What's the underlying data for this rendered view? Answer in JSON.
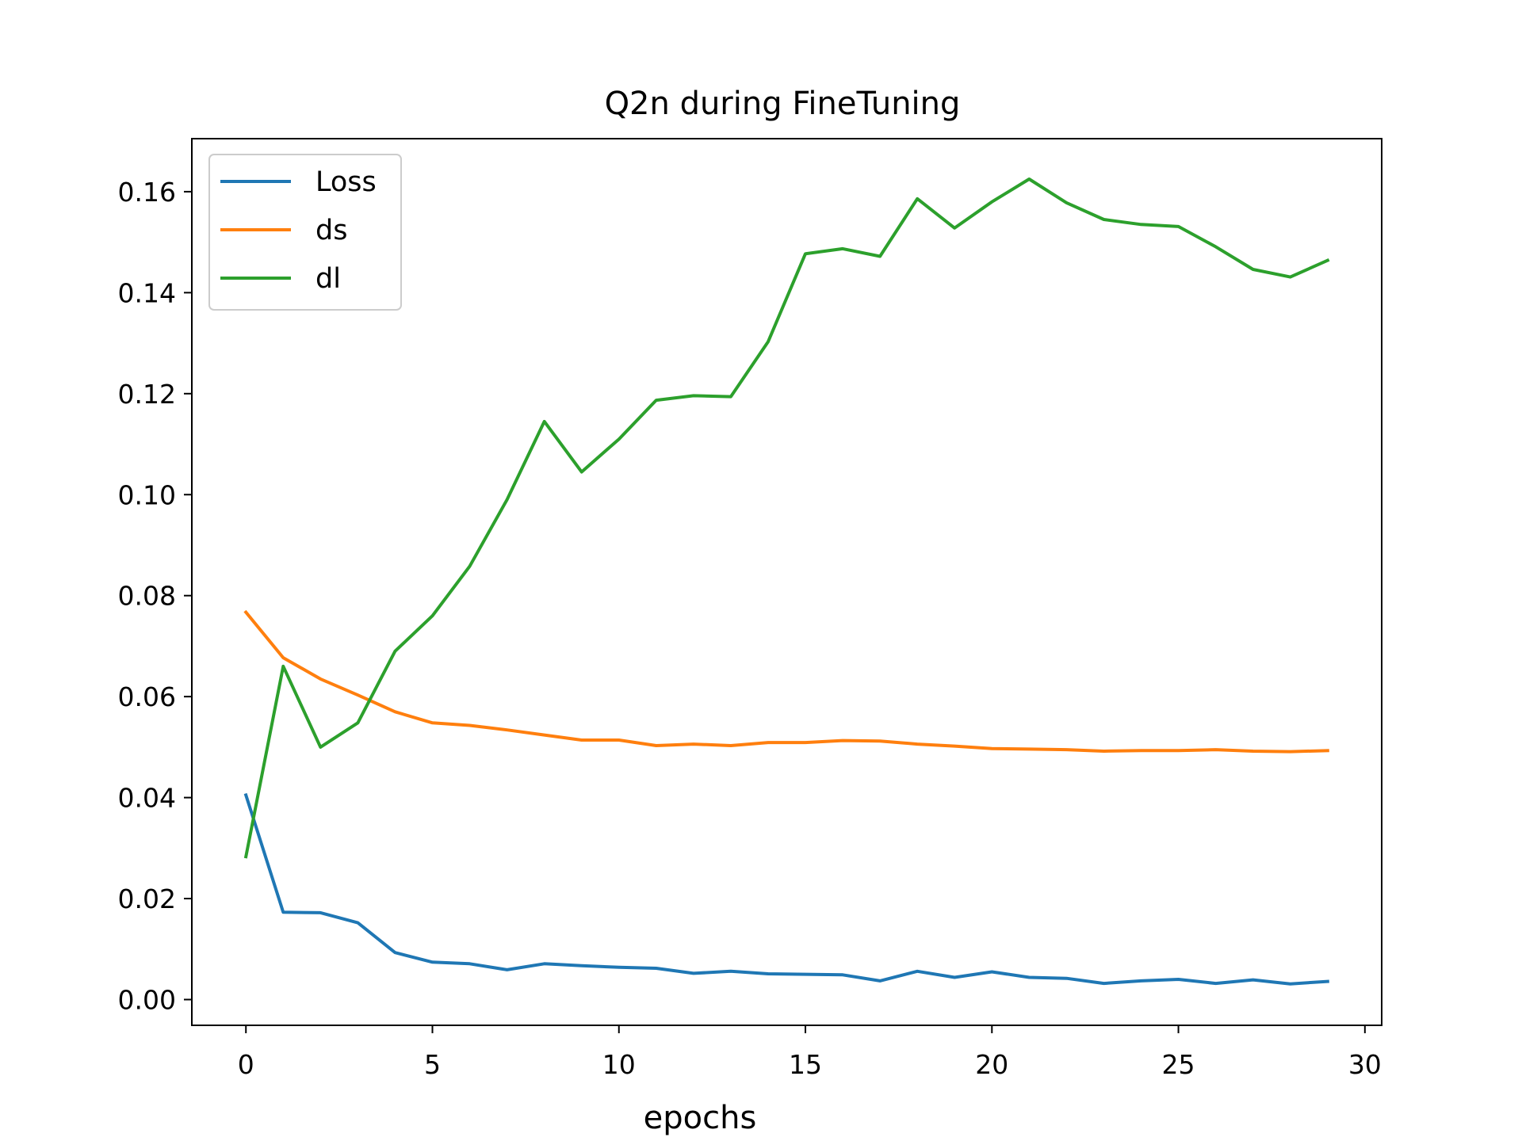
{
  "chart_data": {
    "type": "line",
    "title": "Q2n during FineTuning",
    "xlabel": "epochs",
    "ylabel": "",
    "xlim": [
      -1.45,
      30.45
    ],
    "ylim": [
      -0.0051,
      0.1705
    ],
    "xticks": [
      0,
      5,
      10,
      15,
      20,
      25,
      30
    ],
    "xtick_labels": [
      "0",
      "5",
      "10",
      "15",
      "20",
      "25",
      "30"
    ],
    "yticks": [
      0.0,
      0.02,
      0.04,
      0.06,
      0.08,
      0.1,
      0.12,
      0.14,
      0.16
    ],
    "ytick_labels": [
      "0.00",
      "0.02",
      "0.04",
      "0.06",
      "0.08",
      "0.10",
      "0.12",
      "0.14",
      "0.16"
    ],
    "grid": false,
    "legend_position": "upper-left",
    "x": [
      0,
      1,
      2,
      3,
      4,
      5,
      6,
      7,
      8,
      9,
      10,
      11,
      12,
      13,
      14,
      15,
      16,
      17,
      18,
      19,
      20,
      21,
      22,
      23,
      24,
      25,
      26,
      27,
      28,
      29
    ],
    "series": [
      {
        "name": "Loss",
        "color": "#1f77b4",
        "values": [
          0.0405,
          0.0173,
          0.0172,
          0.0152,
          0.0093,
          0.0074,
          0.0071,
          0.0059,
          0.0071,
          0.0067,
          0.0064,
          0.0062,
          0.0052,
          0.0056,
          0.0051,
          0.005,
          0.0049,
          0.0037,
          0.0056,
          0.0044,
          0.0055,
          0.0044,
          0.0042,
          0.0032,
          0.0037,
          0.004,
          0.0032,
          0.0039,
          0.0031,
          0.0036
        ]
      },
      {
        "name": "ds",
        "color": "#ff7f0e",
        "values": [
          0.0767,
          0.0677,
          0.0635,
          0.0603,
          0.057,
          0.0548,
          0.0543,
          0.0534,
          0.0524,
          0.0514,
          0.0514,
          0.0503,
          0.0506,
          0.0503,
          0.0509,
          0.0509,
          0.0513,
          0.0512,
          0.0506,
          0.0502,
          0.0497,
          0.0496,
          0.0495,
          0.0492,
          0.0493,
          0.0493,
          0.0495,
          0.0492,
          0.0491,
          0.0493
        ]
      },
      {
        "name": "dl",
        "color": "#2ca02c",
        "values": [
          0.0283,
          0.066,
          0.05,
          0.0548,
          0.069,
          0.076,
          0.0858,
          0.099,
          0.1145,
          0.1045,
          0.111,
          0.1187,
          0.1196,
          0.1194,
          0.1303,
          0.1477,
          0.1487,
          0.1472,
          0.1586,
          0.1528,
          0.158,
          0.1625,
          0.1578,
          0.1545,
          0.1535,
          0.1531,
          0.1491,
          0.1446,
          0.1431,
          0.1464
        ]
      }
    ]
  }
}
